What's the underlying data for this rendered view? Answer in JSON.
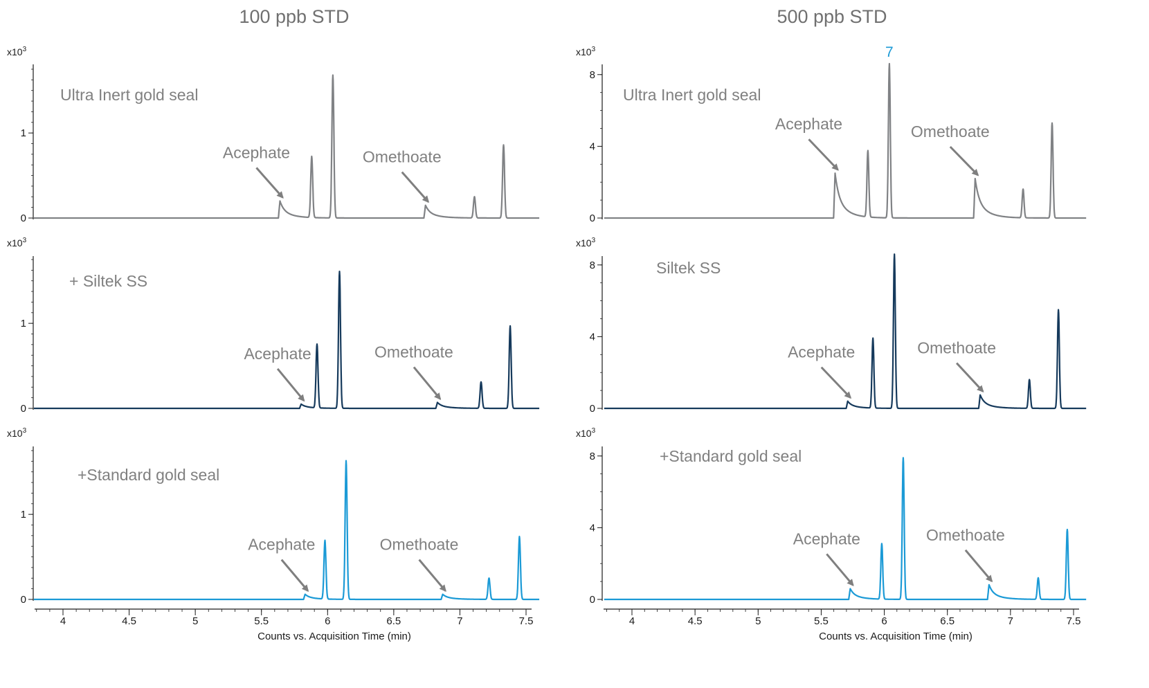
{
  "chart_data": [
    {
      "type": "line",
      "title": "100 ppb STD",
      "xlabel": "Counts vs. Acquisition Time (min)",
      "xlim": [
        3.78,
        7.6
      ],
      "x_ticks": [
        "4",
        "4.5",
        "5",
        "5.5",
        "6",
        "6.5",
        "7",
        "7.5"
      ],
      "panels": [
        {
          "label": "Ultra Inert gold seal",
          "color": "#808285",
          "exponent_label": "x10",
          "exponent_sup": "3",
          "ylim": [
            0,
            1.75
          ],
          "y_ticks": [
            "0",
            "1"
          ],
          "peaks": [
            {
              "x": 5.64,
              "height": 0.2,
              "shape": "tailing"
            },
            {
              "x": 5.88,
              "height": 0.72
            },
            {
              "x": 6.04,
              "height": 1.68
            },
            {
              "x": 6.74,
              "height": 0.15,
              "shape": "tailing"
            },
            {
              "x": 7.11,
              "height": 0.25
            },
            {
              "x": 7.33,
              "height": 0.86
            }
          ],
          "annotations": [
            {
              "text": "Acephate",
              "x": 5.64,
              "y": 0.2
            },
            {
              "text": "Omethoate",
              "x": 6.74,
              "y": 0.15
            }
          ]
        },
        {
          "label": "+ Siltek SS",
          "color": "#163a5c",
          "exponent_label": "x10",
          "exponent_sup": "3",
          "ylim": [
            0,
            1.75
          ],
          "y_ticks": [
            "0",
            "1"
          ],
          "peaks": [
            {
              "x": 5.8,
              "height": 0.05,
              "shape": "tailing"
            },
            {
              "x": 5.92,
              "height": 0.75
            },
            {
              "x": 6.09,
              "height": 1.61
            },
            {
              "x": 6.83,
              "height": 0.07,
              "shape": "tailing"
            },
            {
              "x": 7.16,
              "height": 0.31
            },
            {
              "x": 7.38,
              "height": 0.97
            }
          ],
          "annotations": [
            {
              "text": "Acephate",
              "x": 5.8,
              "y": 0.05
            },
            {
              "text": "Omethoate",
              "x": 6.83,
              "y": 0.07
            }
          ]
        },
        {
          "label": "+Standard gold seal",
          "color": "#1b9ad6",
          "exponent_label": "x10",
          "exponent_sup": "3",
          "ylim": [
            0,
            1.75
          ],
          "y_ticks": [
            "0",
            "1"
          ],
          "peaks": [
            {
              "x": 5.83,
              "height": 0.06,
              "shape": "tailing"
            },
            {
              "x": 5.98,
              "height": 0.69
            },
            {
              "x": 6.14,
              "height": 1.63
            },
            {
              "x": 6.87,
              "height": 0.06,
              "shape": "tailing"
            },
            {
              "x": 7.22,
              "height": 0.25
            },
            {
              "x": 7.45,
              "height": 0.74
            }
          ],
          "annotations": [
            {
              "text": "Acephate",
              "x": 5.83,
              "y": 0.06
            },
            {
              "text": "Omethoate",
              "x": 6.87,
              "y": 0.06
            }
          ]
        }
      ]
    },
    {
      "type": "line",
      "title": "500 ppb STD",
      "xlabel": "Counts vs. Acquisition Time (min)",
      "xlim": [
        3.78,
        7.6
      ],
      "x_ticks": [
        "4",
        "4.5",
        "5",
        "5.5",
        "6",
        "6.5",
        "7",
        "7.5"
      ],
      "peak_label": {
        "text": "7",
        "color": "#1b9ad6",
        "panel": 0,
        "peak": 2
      },
      "panels": [
        {
          "label": "Ultra Inert gold seal",
          "color": "#808285",
          "exponent_label": "x10",
          "exponent_sup": "3",
          "ylim": [
            0,
            8.3
          ],
          "y_ticks": [
            "0",
            "4",
            "8"
          ],
          "peaks": [
            {
              "x": 5.61,
              "height": 2.5,
              "shape": "tailing"
            },
            {
              "x": 5.87,
              "height": 3.7
            },
            {
              "x": 6.04,
              "height": 8.6
            },
            {
              "x": 6.72,
              "height": 2.2,
              "shape": "tailing"
            },
            {
              "x": 7.1,
              "height": 1.6
            },
            {
              "x": 7.33,
              "height": 5.3
            }
          ],
          "annotations": [
            {
              "text": "Acephate",
              "x": 5.61,
              "y": 2.5
            },
            {
              "text": "Omethoate",
              "x": 6.72,
              "y": 2.2
            }
          ]
        },
        {
          "label": "Siltek SS",
          "color": "#163a5c",
          "exponent_label": "x10",
          "exponent_sup": "3",
          "ylim": [
            0,
            8.3
          ],
          "y_ticks": [
            "0",
            "4",
            "8"
          ],
          "peaks": [
            {
              "x": 5.71,
              "height": 0.4,
              "shape": "tailing"
            },
            {
              "x": 5.91,
              "height": 3.9
            },
            {
              "x": 6.08,
              "height": 8.6
            },
            {
              "x": 6.76,
              "height": 0.75,
              "shape": "tailing"
            },
            {
              "x": 7.15,
              "height": 1.6
            },
            {
              "x": 7.38,
              "height": 5.5
            }
          ],
          "annotations": [
            {
              "text": "Acephate",
              "x": 5.71,
              "y": 0.4
            },
            {
              "text": "Omethoate",
              "x": 6.76,
              "y": 0.75
            }
          ]
        },
        {
          "label": "+Standard gold seal",
          "color": "#1b9ad6",
          "exponent_label": "x10",
          "exponent_sup": "3",
          "ylim": [
            0,
            8.3
          ],
          "y_ticks": [
            "0",
            "4",
            "8"
          ],
          "peaks": [
            {
              "x": 5.73,
              "height": 0.6,
              "shape": "tailing"
            },
            {
              "x": 5.98,
              "height": 3.1
            },
            {
              "x": 6.15,
              "height": 7.9
            },
            {
              "x": 6.83,
              "height": 0.82,
              "shape": "tailing"
            },
            {
              "x": 7.22,
              "height": 1.2
            },
            {
              "x": 7.45,
              "height": 3.9
            }
          ],
          "annotations": [
            {
              "text": "Acephate",
              "x": 5.73,
              "y": 0.6
            },
            {
              "text": "Omethoate",
              "x": 6.83,
              "y": 0.82
            }
          ]
        }
      ]
    }
  ]
}
